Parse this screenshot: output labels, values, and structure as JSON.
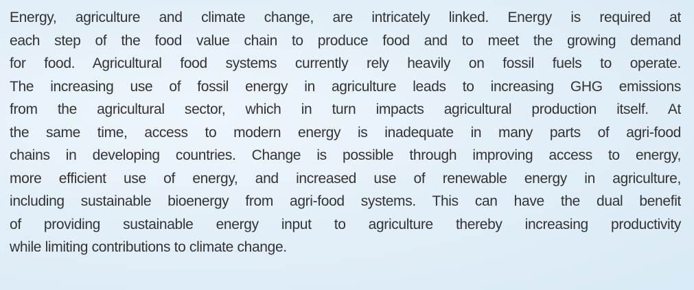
{
  "paragraph": {
    "lines": [
      "Energy, agriculture and climate change, are intricately linked. Energy is required at",
      "each step of the food value chain to produce food and to meet the growing demand",
      "for food. Agricultural food systems currently rely heavily on fossil fuels to operate.",
      "The increasing use of fossil energy in agriculture leads to increasing GHG emissions",
      "from the agricultural sector, which in turn impacts agricultural production itself. At",
      "the same time, access to modern energy is inadequate in many parts of agri-food",
      "chains in developing countries. Change is possible through improving access to energy,",
      "more efficient use of energy, and increased use of renewable energy in agriculture,",
      "including sustainable bioenergy from agri-food systems.  This can have the dual benefit",
      "of providing sustainable energy input to agriculture thereby increasing productivity",
      "while limiting contributions to climate change."
    ]
  }
}
